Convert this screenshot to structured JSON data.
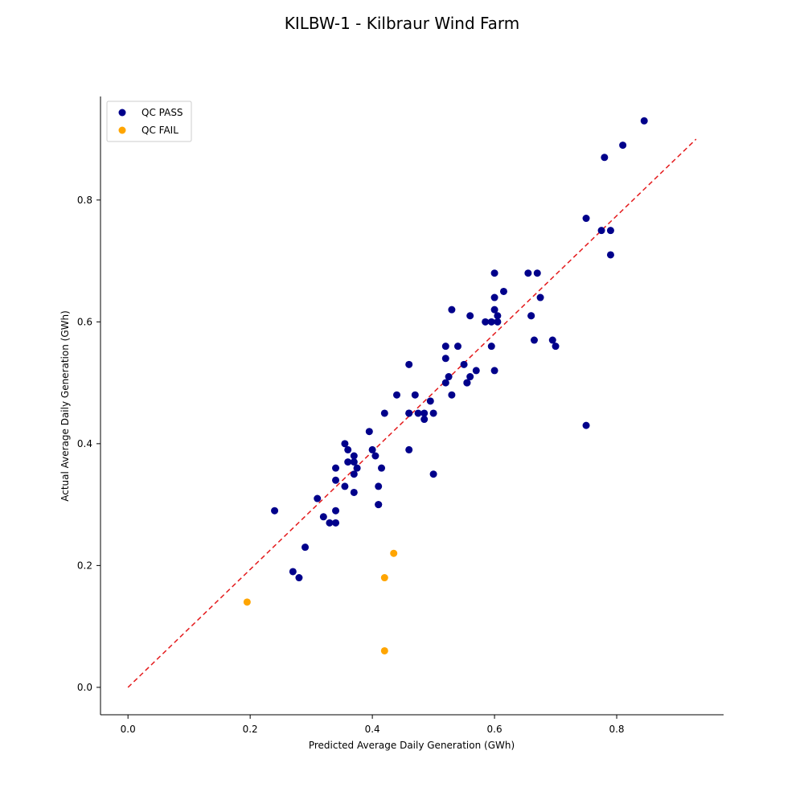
{
  "chart_data": {
    "type": "scatter",
    "title": "KILBW-1 - Kilbraur Wind Farm",
    "xlabel": "Predicted Average Daily Generation (GWh)",
    "ylabel": "Actual Average Daily Generation (GWh)",
    "xlim": [
      -0.045,
      0.975
    ],
    "ylim": [
      -0.045,
      0.97
    ],
    "xticks": [
      0.0,
      0.2,
      0.4,
      0.6,
      0.8
    ],
    "xtick_labels": [
      "0.0",
      "0.2",
      "0.4",
      "0.6",
      "0.8"
    ],
    "yticks": [
      0.0,
      0.2,
      0.4,
      0.6,
      0.8
    ],
    "ytick_labels": [
      "0.0",
      "0.2",
      "0.4",
      "0.6",
      "0.8"
    ],
    "grid": false,
    "legend": "top-left",
    "reference_line": {
      "from": [
        0.0,
        0.0
      ],
      "to": [
        0.93,
        0.9
      ],
      "color": "#e41a1c",
      "style": "dashed"
    },
    "series": [
      {
        "name": "QC PASS",
        "color": "#00008b",
        "points": [
          [
            0.24,
            0.29
          ],
          [
            0.27,
            0.19
          ],
          [
            0.28,
            0.18
          ],
          [
            0.29,
            0.23
          ],
          [
            0.31,
            0.31
          ],
          [
            0.32,
            0.28
          ],
          [
            0.33,
            0.27
          ],
          [
            0.34,
            0.27
          ],
          [
            0.34,
            0.29
          ],
          [
            0.34,
            0.34
          ],
          [
            0.34,
            0.36
          ],
          [
            0.355,
            0.33
          ],
          [
            0.355,
            0.4
          ],
          [
            0.36,
            0.37
          ],
          [
            0.36,
            0.39
          ],
          [
            0.37,
            0.38
          ],
          [
            0.37,
            0.37
          ],
          [
            0.37,
            0.32
          ],
          [
            0.37,
            0.35
          ],
          [
            0.375,
            0.36
          ],
          [
            0.395,
            0.42
          ],
          [
            0.4,
            0.39
          ],
          [
            0.405,
            0.38
          ],
          [
            0.41,
            0.3
          ],
          [
            0.41,
            0.33
          ],
          [
            0.41,
            0.3
          ],
          [
            0.415,
            0.36
          ],
          [
            0.42,
            0.45
          ],
          [
            0.44,
            0.48
          ],
          [
            0.46,
            0.53
          ],
          [
            0.46,
            0.45
          ],
          [
            0.46,
            0.45
          ],
          [
            0.46,
            0.39
          ],
          [
            0.47,
            0.48
          ],
          [
            0.475,
            0.45
          ],
          [
            0.485,
            0.45
          ],
          [
            0.485,
            0.44
          ],
          [
            0.495,
            0.47
          ],
          [
            0.5,
            0.45
          ],
          [
            0.5,
            0.35
          ],
          [
            0.52,
            0.56
          ],
          [
            0.52,
            0.54
          ],
          [
            0.52,
            0.5
          ],
          [
            0.525,
            0.51
          ],
          [
            0.53,
            0.48
          ],
          [
            0.53,
            0.62
          ],
          [
            0.54,
            0.56
          ],
          [
            0.55,
            0.53
          ],
          [
            0.555,
            0.5
          ],
          [
            0.555,
            0.5
          ],
          [
            0.56,
            0.51
          ],
          [
            0.56,
            0.61
          ],
          [
            0.57,
            0.52
          ],
          [
            0.585,
            0.6
          ],
          [
            0.595,
            0.56
          ],
          [
            0.595,
            0.6
          ],
          [
            0.6,
            0.52
          ],
          [
            0.6,
            0.62
          ],
          [
            0.6,
            0.68
          ],
          [
            0.6,
            0.64
          ],
          [
            0.605,
            0.6
          ],
          [
            0.605,
            0.61
          ],
          [
            0.615,
            0.65
          ],
          [
            0.655,
            0.68
          ],
          [
            0.66,
            0.61
          ],
          [
            0.66,
            0.61
          ],
          [
            0.665,
            0.57
          ],
          [
            0.67,
            0.68
          ],
          [
            0.675,
            0.64
          ],
          [
            0.695,
            0.57
          ],
          [
            0.7,
            0.56
          ],
          [
            0.75,
            0.43
          ],
          [
            0.75,
            0.77
          ],
          [
            0.775,
            0.75
          ],
          [
            0.78,
            0.87
          ],
          [
            0.79,
            0.75
          ],
          [
            0.79,
            0.71
          ],
          [
            0.81,
            0.89
          ],
          [
            0.845,
            0.93
          ]
        ]
      },
      {
        "name": "QC FAIL",
        "color": "#ffa500",
        "points": [
          [
            0.195,
            0.14
          ],
          [
            0.42,
            0.18
          ],
          [
            0.42,
            0.06
          ],
          [
            0.435,
            0.22
          ]
        ]
      }
    ]
  }
}
